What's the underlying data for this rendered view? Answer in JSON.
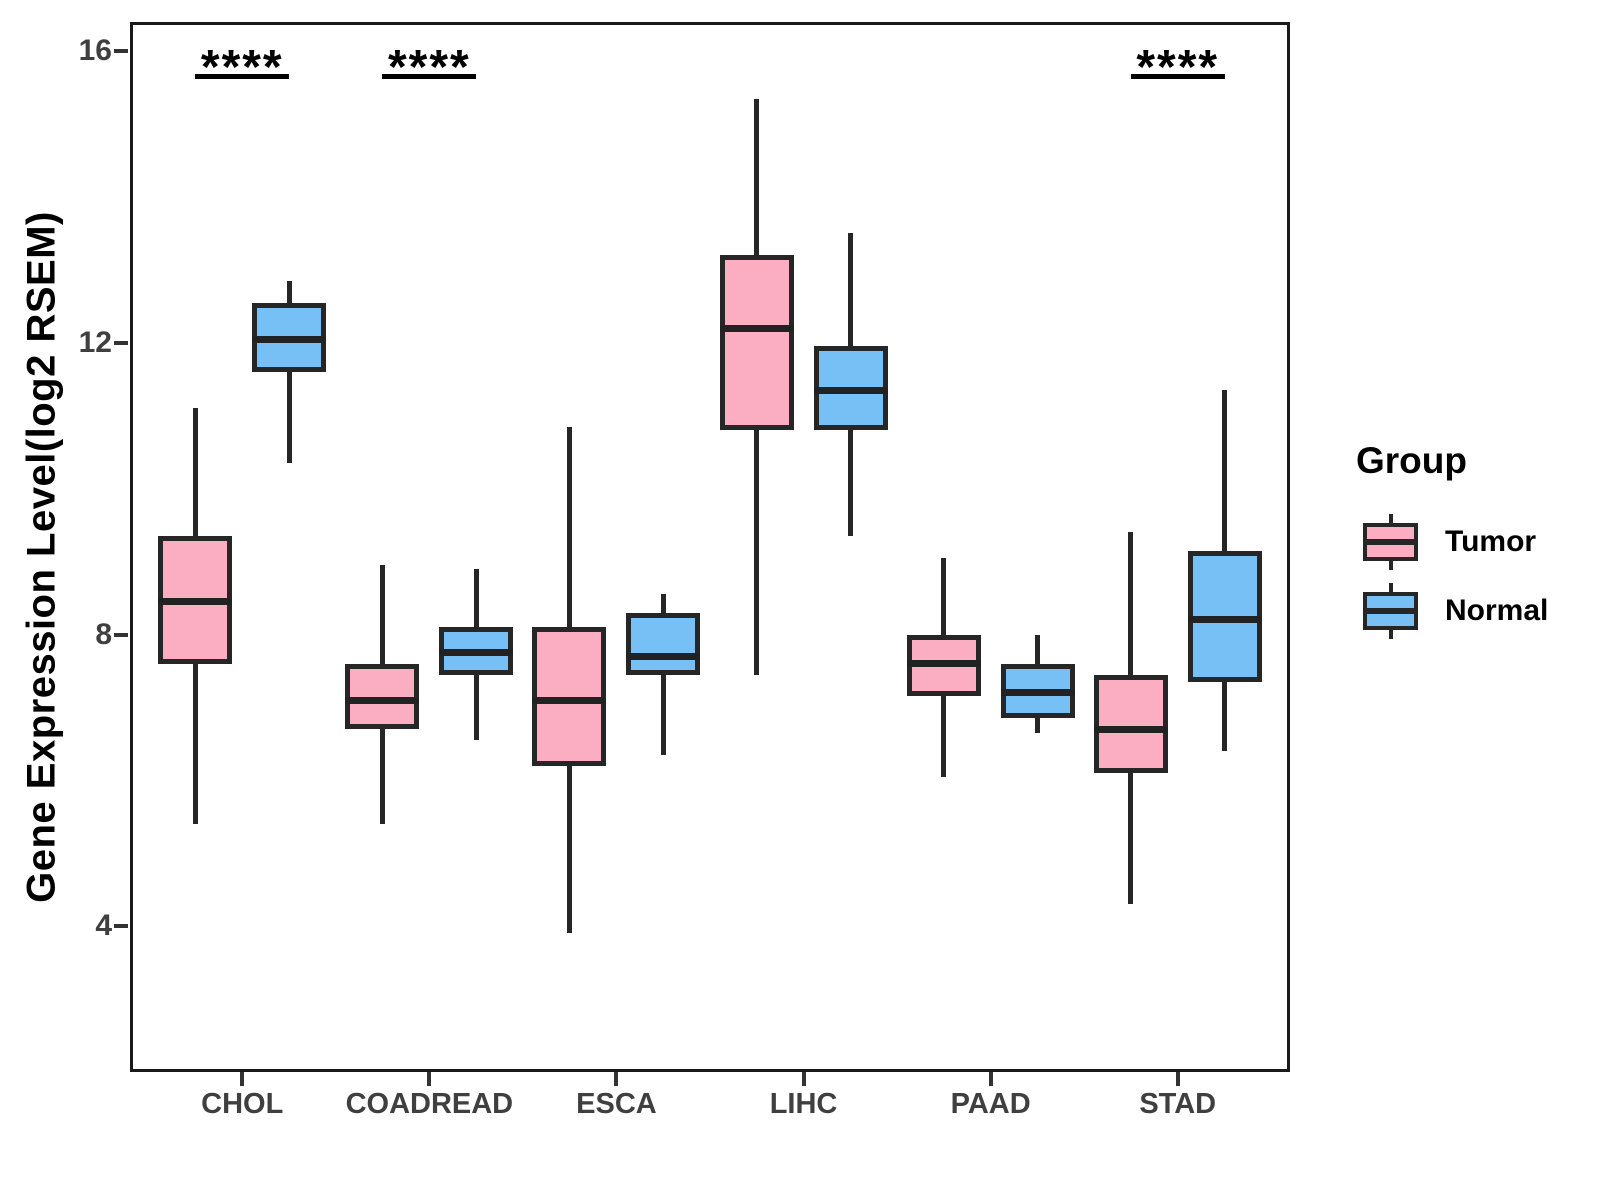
{
  "figure": {
    "y_axis_title": "Gene Expression Level(log2 RSEM)"
  },
  "legend": {
    "title": "Group",
    "items": [
      {
        "label": "Tumor",
        "color": "#FBAEC1"
      },
      {
        "label": "Normal",
        "color": "#76C0F5"
      }
    ]
  },
  "colors": {
    "box_stroke": "#262626",
    "axis_text": "#3F3F3F",
    "panel_border": "#1A1A1A",
    "significance": "#000000"
  },
  "chart_data": {
    "type": "boxplot",
    "title": "",
    "xlabel": "",
    "ylabel": "Gene Expression Level(log2 RSEM)",
    "ylim": [
      2,
      16.4
    ],
    "y_ticks": [
      4,
      8,
      12,
      16
    ],
    "grid": false,
    "legend_title": "Group",
    "legend_position": "right",
    "categories": [
      "CHOL",
      "COADREAD",
      "ESCA",
      "LIHC",
      "PAAD",
      "STAD"
    ],
    "series": [
      {
        "name": "Tumor",
        "color": "#FBAEC1",
        "boxes": [
          {
            "whisker_low": 5.4,
            "q1": 7.6,
            "median": 8.45,
            "q3": 9.35,
            "whisker_high": 11.1
          },
          {
            "whisker_low": 5.4,
            "q1": 6.7,
            "median": 7.1,
            "q3": 7.6,
            "whisker_high": 8.95
          },
          {
            "whisker_low": 3.9,
            "q1": 6.2,
            "median": 7.1,
            "q3": 8.1,
            "whisker_high": 10.85
          },
          {
            "whisker_low": 7.45,
            "q1": 10.8,
            "median": 12.2,
            "q3": 13.2,
            "whisker_high": 15.35
          },
          {
            "whisker_low": 6.05,
            "q1": 7.15,
            "median": 7.6,
            "q3": 8.0,
            "whisker_high": 9.05
          },
          {
            "whisker_low": 4.3,
            "q1": 6.1,
            "median": 6.7,
            "q3": 7.45,
            "whisker_high": 9.4
          }
        ]
      },
      {
        "name": "Normal",
        "color": "#76C0F5",
        "boxes": [
          {
            "whisker_low": 10.35,
            "q1": 11.6,
            "median": 12.05,
            "q3": 12.55,
            "whisker_high": 12.85
          },
          {
            "whisker_low": 6.55,
            "q1": 7.45,
            "median": 7.75,
            "q3": 8.1,
            "whisker_high": 8.9
          },
          {
            "whisker_low": 6.35,
            "q1": 7.45,
            "median": 7.7,
            "q3": 8.3,
            "whisker_high": 8.55
          },
          {
            "whisker_low": 9.35,
            "q1": 10.8,
            "median": 11.35,
            "q3": 11.95,
            "whisker_high": 13.5
          },
          {
            "whisker_low": 6.65,
            "q1": 6.85,
            "median": 7.2,
            "q3": 7.6,
            "whisker_high": 8.0
          },
          {
            "whisker_low": 6.4,
            "q1": 7.35,
            "median": 8.2,
            "q3": 9.15,
            "whisker_high": 11.35
          }
        ]
      }
    ],
    "significance": [
      {
        "category": "CHOL",
        "label": "****"
      },
      {
        "category": "COADREAD",
        "label": "****"
      },
      {
        "category": "STAD",
        "label": "****"
      }
    ]
  }
}
